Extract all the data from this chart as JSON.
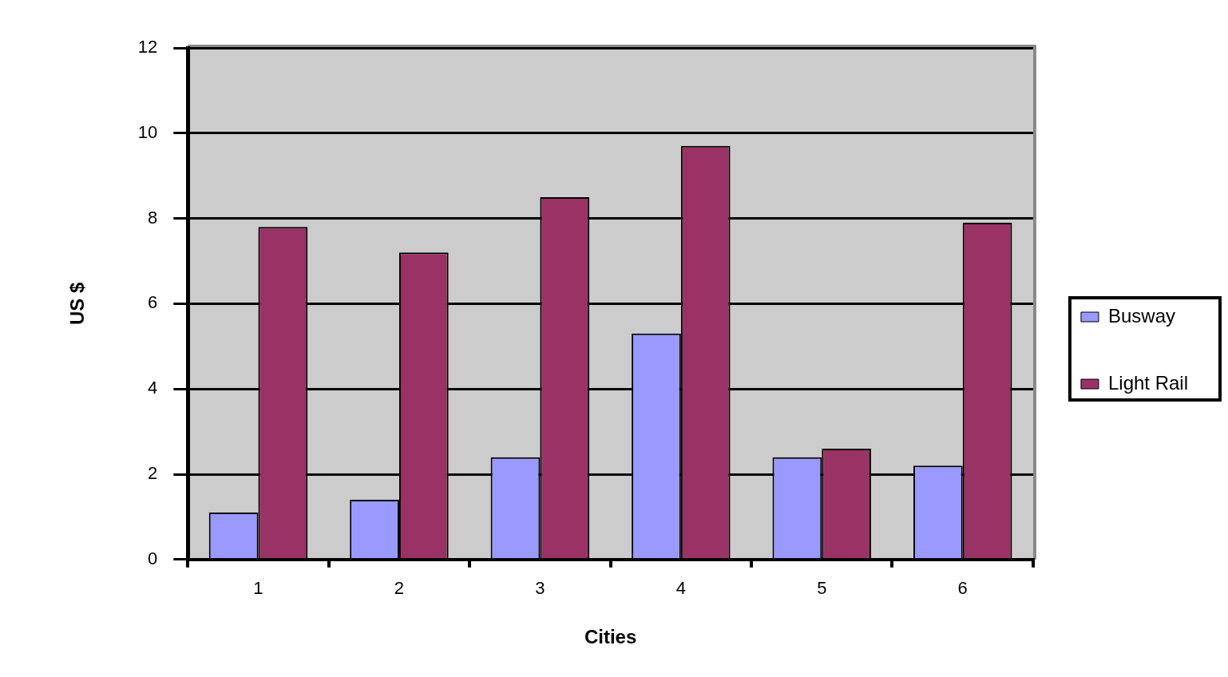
{
  "chart_data": {
    "type": "bar",
    "xlabel": "Cities",
    "ylabel": "US $",
    "categories": [
      "1",
      "2",
      "3",
      "4",
      "5",
      "6"
    ],
    "series": [
      {
        "name": "Busway",
        "color": "#9999ff",
        "values": [
          1.1,
          1.4,
          2.4,
          5.3,
          2.4,
          2.2
        ]
      },
      {
        "name": "Light Rail",
        "color": "#993366",
        "values": [
          7.8,
          7.2,
          8.5,
          9.7,
          2.6,
          7.9
        ]
      }
    ],
    "ylim": [
      0,
      12
    ],
    "yticks": [
      0,
      2,
      4,
      6,
      8,
      10,
      12
    ],
    "grid": "y",
    "legend": "right"
  }
}
